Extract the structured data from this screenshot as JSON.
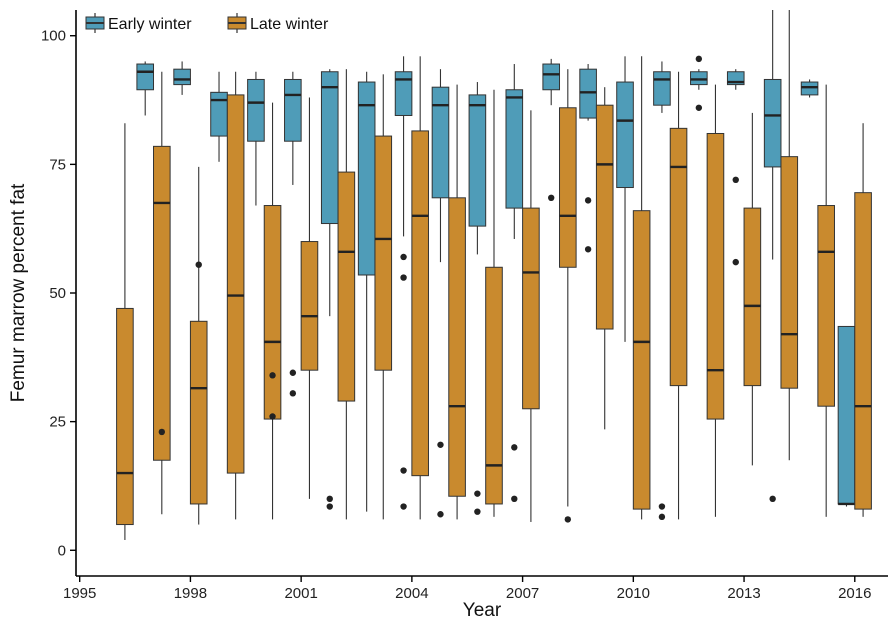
{
  "chart_data": {
    "type": "boxplot",
    "xlabel": "Year",
    "ylabel": "Femur marrow percent fat",
    "xlim": [
      1994.9,
      2016.9
    ],
    "ylim": [
      -5,
      105
    ],
    "x_ticks": [
      1995,
      1998,
      2001,
      2004,
      2007,
      2010,
      2013,
      2016
    ],
    "y_ticks": [
      0,
      25,
      50,
      75,
      100
    ],
    "grid": false,
    "legend_position": "top-left",
    "series": [
      {
        "name": "Early winter",
        "color": "#4f9cb8",
        "boxes": [
          {
            "year": 1997,
            "min": 84.5,
            "q1": 89.5,
            "median": 93,
            "q3": 94.5,
            "max": 95,
            "outliers": []
          },
          {
            "year": 1998,
            "min": 88.5,
            "q1": 90.5,
            "median": 91.5,
            "q3": 93.5,
            "max": 95,
            "outliers": []
          },
          {
            "year": 1999,
            "min": 75.5,
            "q1": 80.5,
            "median": 87.5,
            "q3": 89,
            "max": 93,
            "outliers": []
          },
          {
            "year": 2000,
            "min": 67,
            "q1": 79.5,
            "median": 87,
            "q3": 91.5,
            "max": 93,
            "outliers": []
          },
          {
            "year": 2001,
            "min": 71,
            "q1": 79.5,
            "median": 88.5,
            "q3": 91.5,
            "max": 93,
            "outliers": [
              34.5,
              30.5
            ]
          },
          {
            "year": 2002,
            "min": 45.5,
            "q1": 63.5,
            "median": 90,
            "q3": 93,
            "max": 93.5,
            "outliers": [
              10,
              8.5
            ]
          },
          {
            "year": 2003,
            "min": 7.5,
            "q1": 53.5,
            "median": 86.5,
            "q3": 91,
            "max": 93,
            "outliers": []
          },
          {
            "year": 2004,
            "min": 61,
            "q1": 84.5,
            "median": 91.5,
            "q3": 93,
            "max": 96,
            "outliers": [
              57,
              53,
              15.5,
              8.5
            ]
          },
          {
            "year": 2005,
            "min": 56,
            "q1": 68.5,
            "median": 86.5,
            "q3": 90,
            "max": 93.5,
            "outliers": [
              20.5,
              7
            ]
          },
          {
            "year": 2006,
            "min": 57.5,
            "q1": 63,
            "median": 86.5,
            "q3": 88.5,
            "max": 91,
            "outliers": [
              11,
              7.5
            ]
          },
          {
            "year": 2007,
            "min": 60.5,
            "q1": 66.5,
            "median": 88,
            "q3": 89.5,
            "max": 94.5,
            "outliers": [
              20,
              10
            ]
          },
          {
            "year": 2008,
            "min": 86.5,
            "q1": 89.5,
            "median": 92.5,
            "q3": 94.5,
            "max": 95.5,
            "outliers": [
              68.5
            ]
          },
          {
            "year": 2009,
            "min": 83.5,
            "q1": 84,
            "median": 89,
            "q3": 93.5,
            "max": 94.5,
            "outliers": [
              68,
              58.5
            ]
          },
          {
            "year": 2010,
            "min": 40.5,
            "q1": 70.5,
            "median": 83.5,
            "q3": 91,
            "max": 96,
            "outliers": []
          },
          {
            "year": 2011,
            "min": 85,
            "q1": 86.5,
            "median": 91.5,
            "q3": 93,
            "max": 95,
            "outliers": [
              8.5,
              6.5
            ]
          },
          {
            "year": 2012,
            "min": 89.5,
            "q1": 90.5,
            "median": 91.5,
            "q3": 93,
            "max": 93.5,
            "outliers": [
              95.5,
              86
            ]
          },
          {
            "year": 2013,
            "min": 89.5,
            "q1": 90.5,
            "median": 91,
            "q3": 93,
            "max": 93.5,
            "outliers": [
              72,
              56
            ]
          },
          {
            "year": 2014,
            "min": 56.5,
            "q1": 74.5,
            "median": 84.5,
            "q3": 91.5,
            "max": 105,
            "outliers": [
              10
            ]
          },
          {
            "year": 2015,
            "min": 88,
            "q1": 88.5,
            "median": 90,
            "q3": 91,
            "max": 91.5,
            "outliers": []
          },
          {
            "year": 2016,
            "min": 8.5,
            "q1": 9,
            "median": 9,
            "q3": 43.5,
            "max": 43.5,
            "outliers": []
          }
        ]
      },
      {
        "name": "Late winter",
        "color": "#c98a2e",
        "boxes": [
          {
            "year": 1996,
            "min": 2,
            "q1": 5,
            "median": 15,
            "q3": 47,
            "max": 83,
            "outliers": []
          },
          {
            "year": 1997,
            "min": 7,
            "q1": 17.5,
            "median": 67.5,
            "q3": 78.5,
            "max": 93,
            "outliers": [
              23
            ]
          },
          {
            "year": 1998,
            "min": 5,
            "q1": 9,
            "median": 31.5,
            "q3": 44.5,
            "max": 74.5,
            "outliers": [
              55.5
            ]
          },
          {
            "year": 1999,
            "min": 6,
            "q1": 15,
            "median": 49.5,
            "q3": 88.5,
            "max": 93,
            "outliers": []
          },
          {
            "year": 2000,
            "min": 6,
            "q1": 25.5,
            "median": 40.5,
            "q3": 67,
            "max": 87,
            "outliers": [
              34,
              26
            ]
          },
          {
            "year": 2001,
            "min": 10,
            "q1": 35,
            "median": 45.5,
            "q3": 60,
            "max": 88,
            "outliers": []
          },
          {
            "year": 2002,
            "min": 6,
            "q1": 29,
            "median": 58,
            "q3": 73.5,
            "max": 93.5,
            "outliers": []
          },
          {
            "year": 2003,
            "min": 6,
            "q1": 35,
            "median": 60.5,
            "q3": 80.5,
            "max": 92.5,
            "outliers": []
          },
          {
            "year": 2004,
            "min": 6,
            "q1": 14.5,
            "median": 65,
            "q3": 81.5,
            "max": 96,
            "outliers": []
          },
          {
            "year": 2005,
            "min": 6,
            "q1": 10.5,
            "median": 28,
            "q3": 68.5,
            "max": 90.5,
            "outliers": []
          },
          {
            "year": 2006,
            "min": 6.5,
            "q1": 9,
            "median": 16.5,
            "q3": 55,
            "max": 89.5,
            "outliers": []
          },
          {
            "year": 2007,
            "min": 5.5,
            "q1": 27.5,
            "median": 54,
            "q3": 66.5,
            "max": 85.5,
            "outliers": []
          },
          {
            "year": 2008,
            "min": 8.5,
            "q1": 55,
            "median": 65,
            "q3": 86,
            "max": 93.5,
            "outliers": [
              6
            ]
          },
          {
            "year": 2009,
            "min": 23.5,
            "q1": 43,
            "median": 75,
            "q3": 86.5,
            "max": 90,
            "outliers": []
          },
          {
            "year": 2010,
            "min": 6,
            "q1": 8,
            "median": 40.5,
            "q3": 66,
            "max": 96,
            "outliers": []
          },
          {
            "year": 2011,
            "min": 6,
            "q1": 32,
            "median": 74.5,
            "q3": 82,
            "max": 93,
            "outliers": []
          },
          {
            "year": 2012,
            "min": 6.5,
            "q1": 25.5,
            "median": 35,
            "q3": 81,
            "max": 90.5,
            "outliers": []
          },
          {
            "year": 2013,
            "min": 16.5,
            "q1": 32,
            "median": 47.5,
            "q3": 66.5,
            "max": 85,
            "outliers": []
          },
          {
            "year": 2014,
            "min": 17.5,
            "q1": 31.5,
            "median": 42,
            "q3": 76.5,
            "max": 105,
            "outliers": []
          },
          {
            "year": 2015,
            "min": 6.5,
            "q1": 28,
            "median": 58,
            "q3": 67,
            "max": 90.5,
            "outliers": []
          },
          {
            "year": 2016,
            "min": 6.5,
            "q1": 8,
            "median": 28,
            "q3": 69.5,
            "max": 83,
            "outliers": []
          }
        ]
      }
    ]
  }
}
